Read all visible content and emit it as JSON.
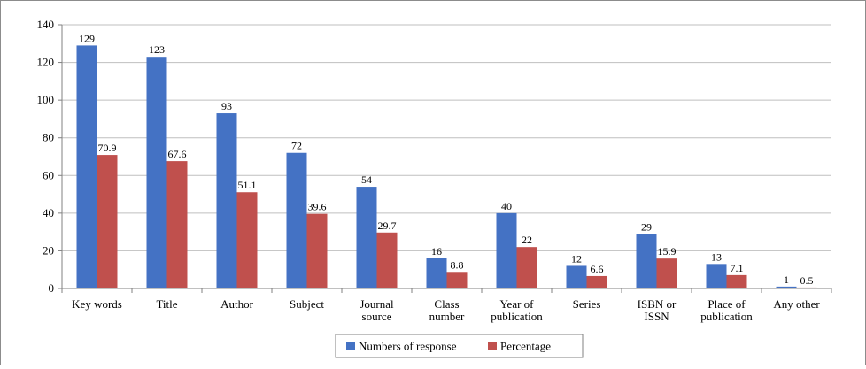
{
  "chart_data": {
    "type": "bar",
    "categories": [
      [
        "Key words"
      ],
      [
        "Title"
      ],
      [
        "Author"
      ],
      [
        "Subject"
      ],
      [
        "Journal",
        "source"
      ],
      [
        "Class",
        "number"
      ],
      [
        "Year of",
        "publication"
      ],
      [
        "Series"
      ],
      [
        "ISBN or",
        "ISSN"
      ],
      [
        "Place of",
        "publication"
      ],
      [
        "Any other"
      ]
    ],
    "series": [
      {
        "name": "Numbers of response",
        "color": "#4472C4",
        "values": [
          129,
          123,
          93,
          72,
          54,
          16,
          40,
          12,
          29,
          13,
          1
        ],
        "labels": [
          "129",
          "123",
          "93",
          "72",
          "54",
          "16",
          "40",
          "12",
          "29",
          "13",
          "1"
        ]
      },
      {
        "name": "Percentage",
        "color": "#C0504D",
        "values": [
          70.9,
          67.6,
          51.1,
          39.6,
          29.7,
          8.8,
          22,
          6.6,
          15.9,
          7.1,
          0.5
        ],
        "labels": [
          "70.9",
          "67.6",
          "51.1",
          "39.6",
          "29.7",
          "8.8",
          "22",
          "6.6",
          "15.9",
          "7.1",
          "0.5"
        ]
      }
    ],
    "yticks": [
      "0",
      "20",
      "40",
      "60",
      "80",
      "100",
      "120",
      "140"
    ],
    "ylim": [
      0,
      140
    ],
    "grid": true,
    "legend_position": "bottom",
    "title": "",
    "xlabel": "",
    "ylabel": ""
  }
}
